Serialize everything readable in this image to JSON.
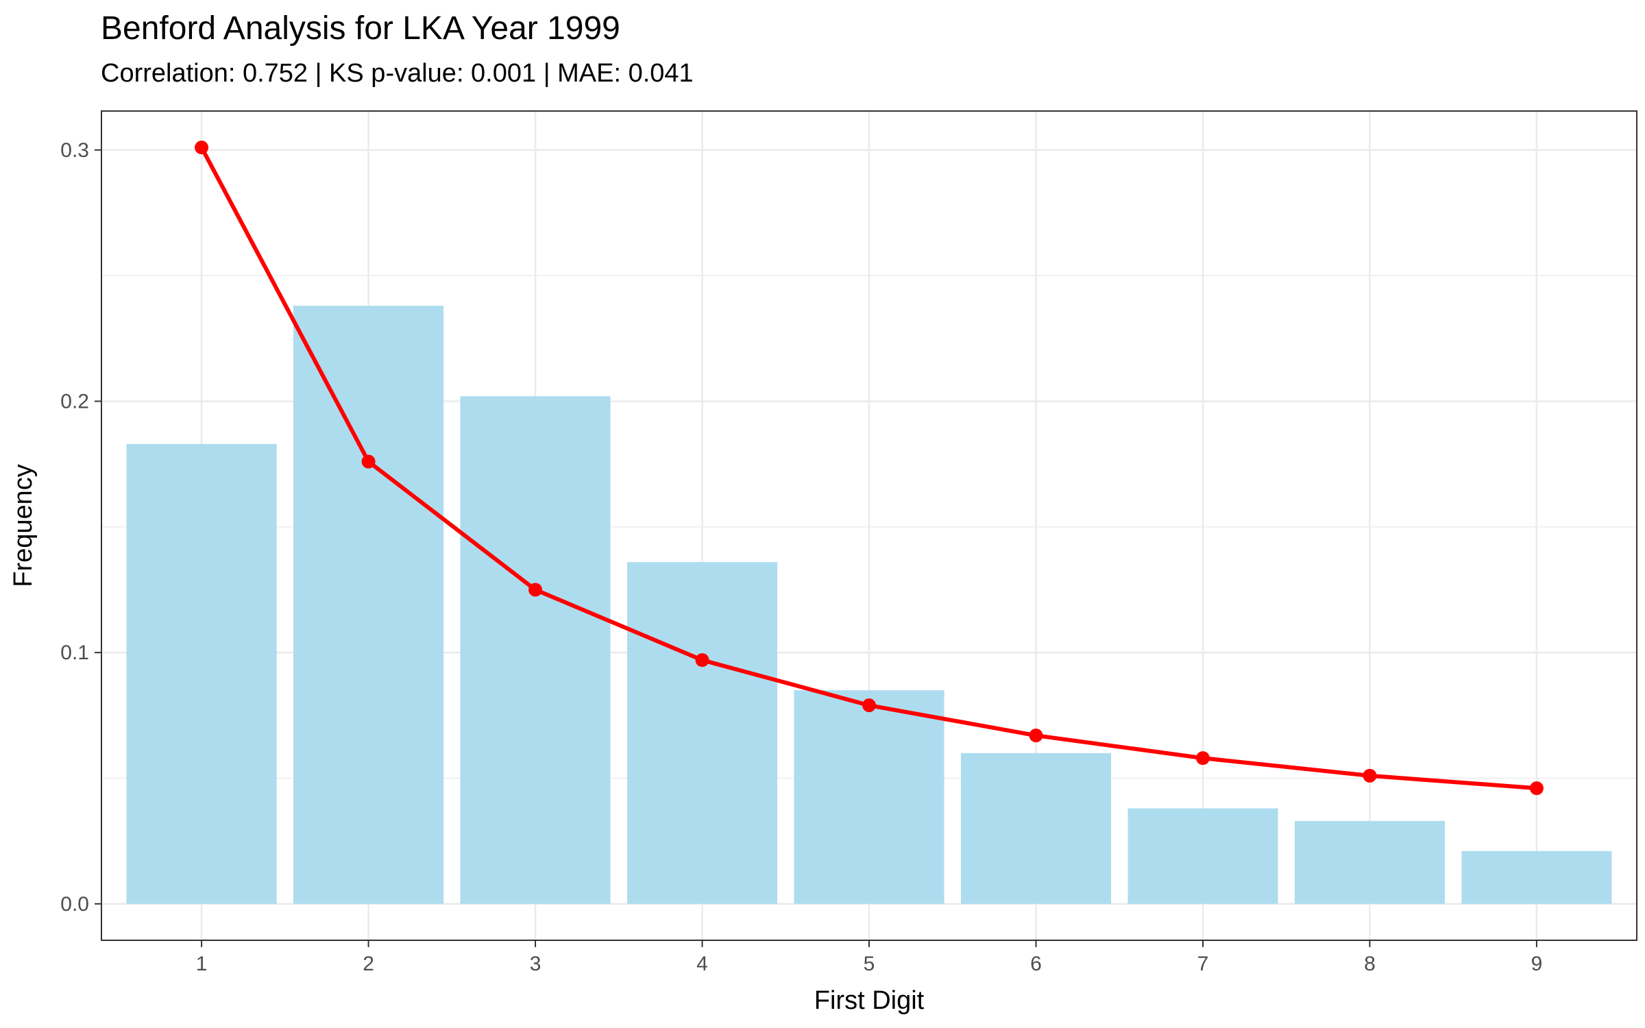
{
  "chart_data": {
    "type": "bar",
    "title": "Benford Analysis for LKA Year 1999",
    "subtitle": "Correlation: 0.752 | KS p-value: 0.001 | MAE: 0.041",
    "xlabel": "First Digit",
    "ylabel": "Frequency",
    "categories": [
      "1",
      "2",
      "3",
      "4",
      "5",
      "6",
      "7",
      "8",
      "9"
    ],
    "series": [
      {
        "type": "bar",
        "color": "#ADDCEF",
        "values": [
          0.183,
          0.238,
          0.202,
          0.136,
          0.085,
          0.06,
          0.038,
          0.033,
          0.021
        ]
      },
      {
        "type": "line",
        "color": "#FF0000",
        "values": [
          0.301,
          0.176,
          0.125,
          0.097,
          0.079,
          0.067,
          0.058,
          0.051,
          0.046
        ]
      }
    ],
    "xlim": [
      0.4,
      9.6
    ],
    "ylim": [
      -0.0145,
      0.3155
    ],
    "yticks": [
      0.0,
      0.1,
      0.2,
      0.3
    ],
    "ytick_labels": [
      "0.0",
      "0.1",
      "0.2",
      "0.3"
    ],
    "grid": true,
    "legend": "none"
  }
}
